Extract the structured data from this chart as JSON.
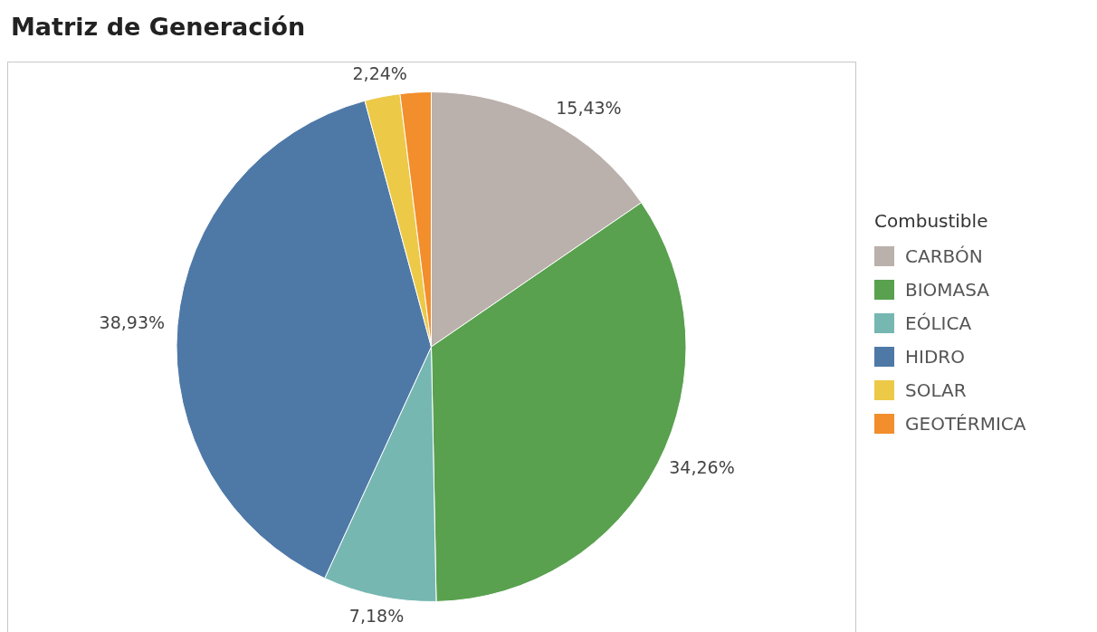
{
  "chart_data": {
    "type": "pie",
    "title": "Matriz de Generación",
    "legend_title": "Combustible",
    "legend": "right",
    "categories": [
      "CARBÓN",
      "BIOMASA",
      "EÓLICA",
      "HIDRO",
      "SOLAR",
      "GEOTÉRMICA"
    ],
    "values": [
      15.43,
      34.26,
      7.18,
      38.93,
      2.24,
      1.96
    ],
    "colors": [
      "#bab0ac",
      "#59a14f",
      "#76b7b2",
      "#4e79a7",
      "#edc948",
      "#f28e2b"
    ],
    "value_labels": [
      "15,43%",
      "34,26%",
      "7,18%",
      "38,93%",
      "2,24%",
      null
    ]
  }
}
